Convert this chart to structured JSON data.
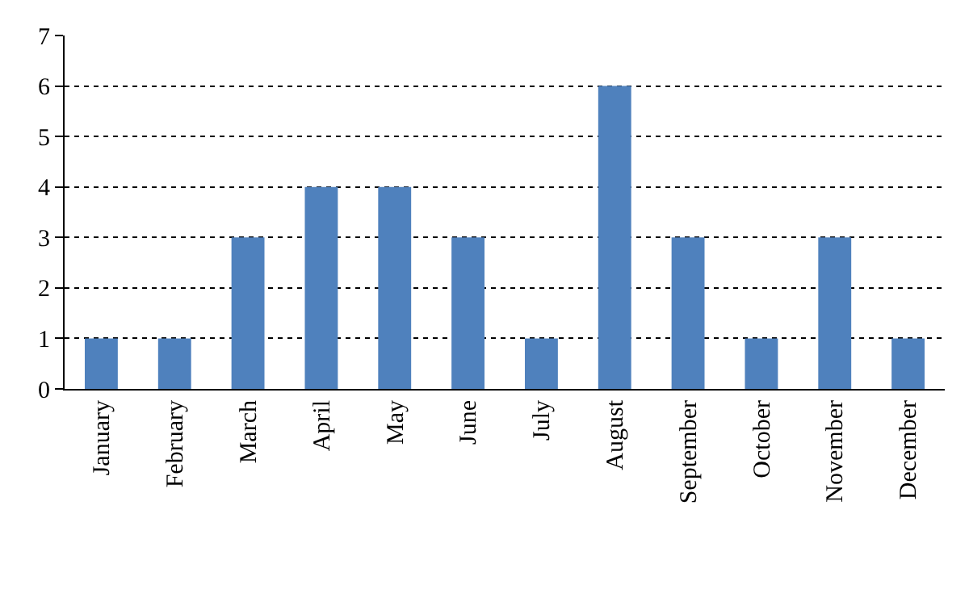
{
  "chart_data": {
    "type": "bar",
    "categories": [
      "January",
      "February",
      "March",
      "April",
      "May",
      "June",
      "July",
      "August",
      "September",
      "October",
      "November",
      "December"
    ],
    "values": [
      1,
      1,
      3,
      4,
      4,
      3,
      1,
      6,
      3,
      1,
      3,
      1
    ],
    "color": "#4f81bd",
    "ylim": [
      0,
      7
    ],
    "yticks": [
      0,
      1,
      2,
      3,
      4,
      5,
      6,
      7
    ],
    "grid": "y"
  }
}
